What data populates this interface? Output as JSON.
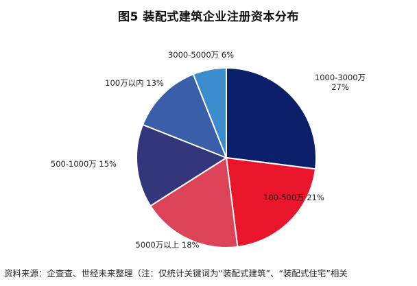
{
  "title": "图5 装配式建筑企业注册资本分布",
  "source": "资料来源：企查查、世经未来整理（注：仅统计关键词为“装配式建筑”、“装配式住宅”相关",
  "chart_data": {
    "type": "pie",
    "title": "图5 装配式建筑企业注册资本分布",
    "start_angle": "12 o'clock, clockwise",
    "slices": [
      {
        "label": "1000-3000万",
        "pct_label": "27%",
        "value": 27,
        "color": "#0c1f6a"
      },
      {
        "label": "100-500万",
        "pct_label": "21%",
        "value": 21,
        "color": "#e8152b"
      },
      {
        "label": "5000万以上",
        "pct_label": "18%",
        "value": 18,
        "color": "#dd4358"
      },
      {
        "label": "500-1000万",
        "pct_label": "15%",
        "value": 15,
        "color": "#33367b"
      },
      {
        "label": "100万以内",
        "pct_label": "13%",
        "value": 13,
        "color": "#3b5ea8"
      },
      {
        "label": "3000-5000万",
        "pct_label": "6%",
        "value": 6,
        "color": "#3b8ccc"
      }
    ]
  }
}
